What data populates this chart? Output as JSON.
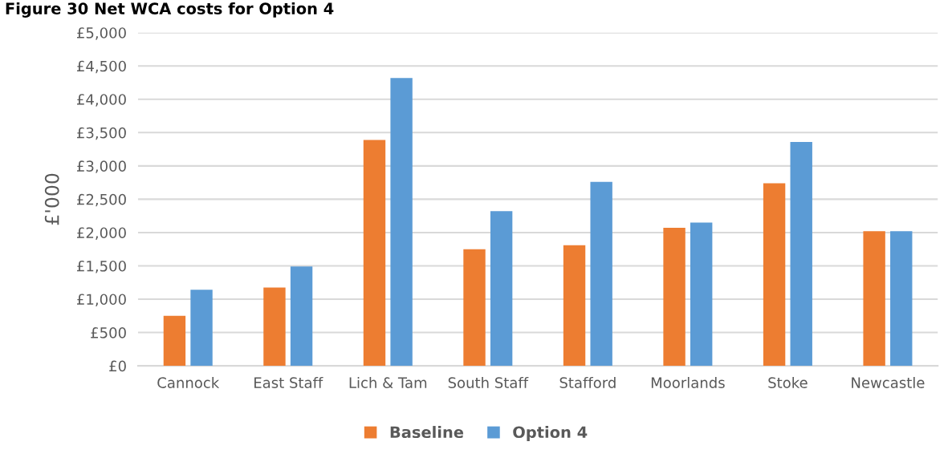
{
  "chart_data": {
    "type": "bar",
    "title": "Figure 30 Net WCA costs for Option 4",
    "ylabel": "£'000",
    "categories": [
      "Cannock",
      "East Staff",
      "Lich & Tam",
      "South Staff",
      "Stafford",
      "Moorlands",
      "Stoke",
      "Newcastle"
    ],
    "series": [
      {
        "name": "Baseline",
        "color": "#ed7d31",
        "values": [
          750,
          1175,
          3390,
          1750,
          1810,
          2070,
          2740,
          2020
        ]
      },
      {
        "name": "Option 4",
        "color": "#5b9bd5",
        "values": [
          1140,
          1490,
          4320,
          2320,
          2760,
          2150,
          3360,
          2020
        ]
      }
    ],
    "ylim": [
      0,
      5000
    ],
    "yticks": [
      {
        "value": 0,
        "label": "£0"
      },
      {
        "value": 500,
        "label": "£500"
      },
      {
        "value": 1000,
        "label": "£1,000"
      },
      {
        "value": 1500,
        "label": "£1,500"
      },
      {
        "value": 2000,
        "label": "£2,000"
      },
      {
        "value": 2500,
        "label": "£2,500"
      },
      {
        "value": 3000,
        "label": "£3,000"
      },
      {
        "value": 3500,
        "label": "£3,500"
      },
      {
        "value": 4000,
        "label": "£4,000"
      },
      {
        "value": 4500,
        "label": "£4,500"
      },
      {
        "value": 5000,
        "label": "£5,000"
      }
    ],
    "grid": "y",
    "legend": "bottom"
  }
}
